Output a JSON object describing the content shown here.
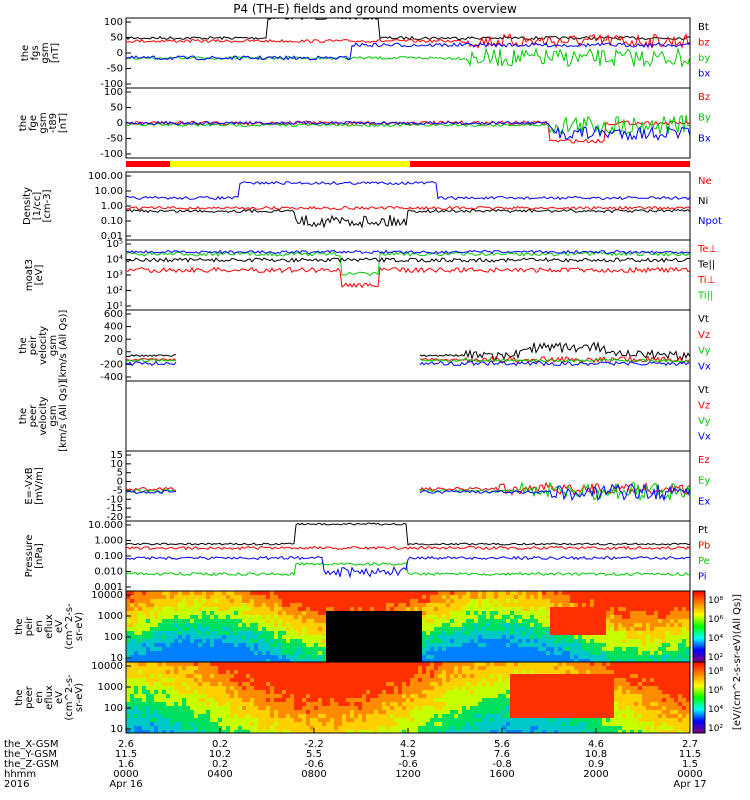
{
  "title": "P4 (TH-E) fields and ground moments overview",
  "colors": {
    "black": "#000000",
    "red": "#ff0000",
    "green": "#00cc00",
    "blue": "#0000ff",
    "yellow": "#ffff00"
  },
  "chart_data": [
    {
      "type": "line",
      "ylabel": [
        "the",
        "fgs",
        "gsm",
        "[nT]"
      ],
      "yticks": [
        "100",
        "50",
        "0",
        "-50",
        "-100"
      ],
      "series": [
        {
          "name": "Bt",
          "color": "black"
        },
        {
          "name": "bz",
          "color": "red"
        },
        {
          "name": "by",
          "color": "green"
        },
        {
          "name": "bx",
          "color": "blue"
        }
      ]
    },
    {
      "type": "line",
      "ylabel": [
        "the",
        "fge",
        "gsm",
        "-t89",
        "[nT]"
      ],
      "yticks": [
        "100",
        "50",
        "0",
        "-50",
        "-100"
      ],
      "series": [
        {
          "name": "Bz",
          "color": "red"
        },
        {
          "name": "By",
          "color": "green"
        },
        {
          "name": "Bx",
          "color": "blue"
        }
      ]
    },
    {
      "type": "line",
      "ylabel": [
        "Density",
        "[1/cc]",
        "[cm-3]"
      ],
      "yticks": [
        "100.00",
        "10.00",
        "1.00",
        "0.10",
        "0.01"
      ],
      "series": [
        {
          "name": "Ne",
          "color": "red"
        },
        {
          "name": "Ni",
          "color": "black"
        },
        {
          "name": "Npot",
          "color": "blue"
        }
      ]
    },
    {
      "type": "line",
      "ylabel": [
        "moat3",
        "[eV]"
      ],
      "yticks": [
        "10⁵",
        "10⁴",
        "10³",
        "10²",
        "10¹"
      ],
      "series": [
        {
          "name": "Te⊥",
          "color": "red"
        },
        {
          "name": "Te||",
          "color": "black"
        },
        {
          "name": "Ti⊥",
          "color": "red"
        },
        {
          "name": "Ti||",
          "color": "green"
        }
      ]
    },
    {
      "type": "line",
      "ylabel": [
        "the",
        "peir",
        "velocity",
        "gsm",
        "[km/s (All Qs)]"
      ],
      "yticks": [
        "600",
        "400",
        "200",
        "0",
        "-200",
        "-400"
      ],
      "series": [
        {
          "name": "Vt",
          "color": "black"
        },
        {
          "name": "Vz",
          "color": "red"
        },
        {
          "name": "Vy",
          "color": "green"
        },
        {
          "name": "Vx",
          "color": "blue"
        }
      ]
    },
    {
      "type": "line",
      "ylabel": [
        "the",
        "peer",
        "velocity",
        "gsm",
        "[km/s (All Qs)]"
      ],
      "yticks": [],
      "series": [
        {
          "name": "Vt",
          "color": "black"
        },
        {
          "name": "Vz",
          "color": "red"
        },
        {
          "name": "Vy",
          "color": "green"
        },
        {
          "name": "Vx",
          "color": "blue"
        }
      ]
    },
    {
      "type": "line",
      "ylabel": [
        "E=-VxB",
        "[mV/m]"
      ],
      "yticks": [
        "15",
        "10",
        "5",
        "0",
        "-5",
        "-10",
        "-15",
        "-20"
      ],
      "series": [
        {
          "name": "Ez",
          "color": "red"
        },
        {
          "name": "Ey",
          "color": "green"
        },
        {
          "name": "Ex",
          "color": "blue"
        }
      ]
    },
    {
      "type": "line",
      "ylabel": [
        "Pressure",
        "[nPa]"
      ],
      "yticks": [
        "10.000",
        "1.000",
        "0.100",
        "0.010",
        "0.001"
      ],
      "series": [
        {
          "name": "Pt",
          "color": "black"
        },
        {
          "name": "Pb",
          "color": "red"
        },
        {
          "name": "Pe",
          "color": "green"
        },
        {
          "name": "Pi",
          "color": "blue"
        }
      ]
    },
    {
      "type": "heatmap",
      "ylabel": [
        "the",
        "peir",
        "en",
        "eflux",
        "eV",
        "(cm^2-s-",
        "sr-eV)"
      ],
      "yticks": [
        "10000",
        "1000",
        "100",
        "10"
      ],
      "colorbar": [
        "10⁸",
        "10⁶",
        "10⁴",
        "10²"
      ]
    },
    {
      "type": "heatmap",
      "ylabel": [
        "the",
        "peer",
        "en",
        "eflux",
        "eV",
        "(cm^2-s-",
        "sr-eV)"
      ],
      "yticks": [
        "10000",
        "1000",
        "100",
        "10"
      ],
      "colorbar": [
        "10⁸",
        "10⁶",
        "10⁴",
        "10²"
      ]
    }
  ],
  "colorbar_label": "[eV/(cm^2-s-sr-eV)(All Qs)]",
  "x_axis": {
    "rows": [
      {
        "label": "the_X-GSM",
        "values": [
          "2.6",
          "0.2",
          "-2.2",
          "4.2",
          "5.6",
          "4.6",
          "2.7"
        ]
      },
      {
        "label": "the_Y-GSM",
        "values": [
          "11.5",
          "10.2",
          "5.5",
          "1.9",
          "7.6",
          "10.8",
          "11.5"
        ]
      },
      {
        "label": "the_Z-GSM",
        "values": [
          "1.6",
          "0.2",
          "-0.6",
          "-0.6",
          "-0.8",
          "0.9",
          "1.5"
        ]
      },
      {
        "label": "hhmm",
        "values": [
          "0000",
          "0400",
          "0800",
          "1200",
          "1600",
          "2000",
          "0000"
        ]
      },
      {
        "label": "2016",
        "values": [
          "Apr 16",
          "",
          "",
          "",
          "",
          "",
          "Apr 17"
        ]
      }
    ]
  }
}
